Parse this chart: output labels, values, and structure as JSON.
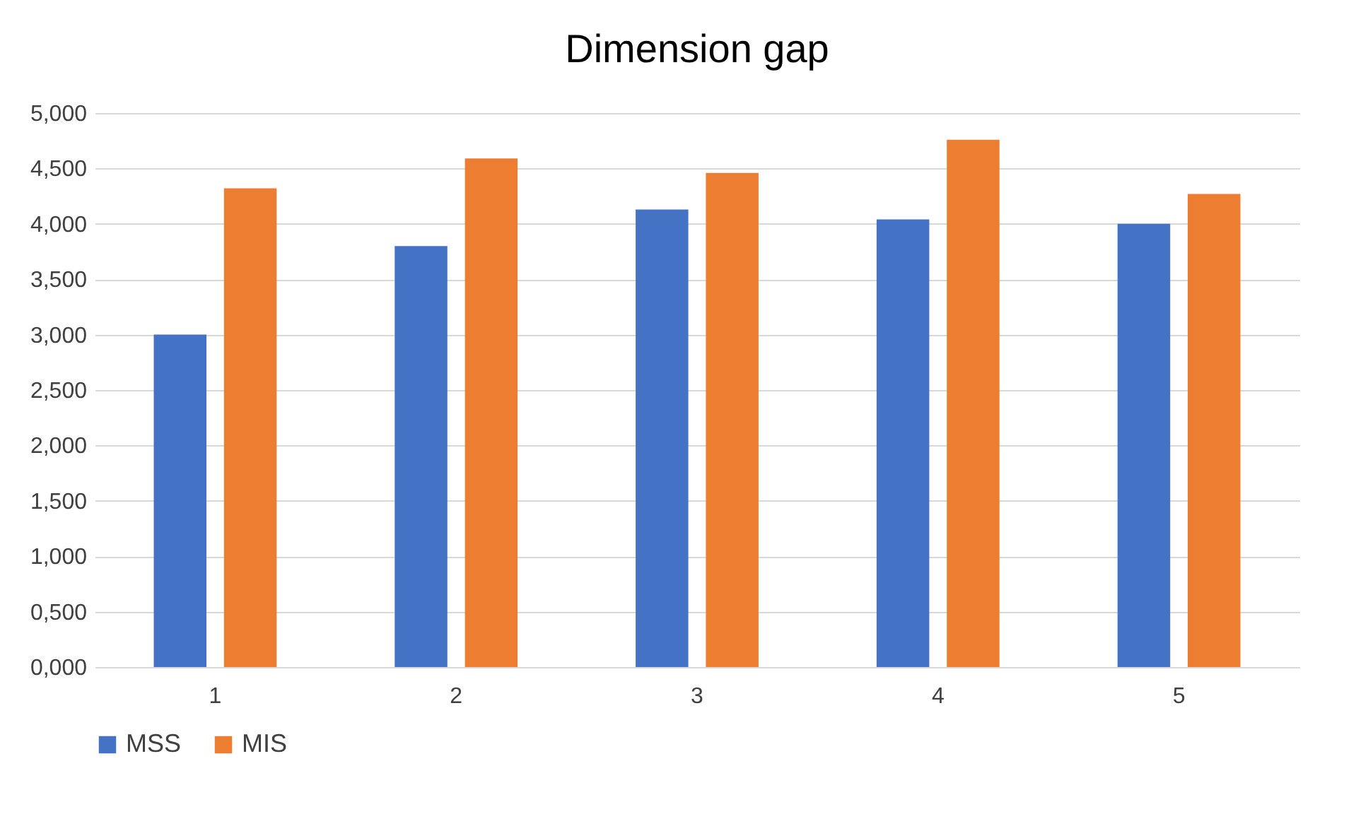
{
  "chart_data": {
    "type": "bar",
    "title": "Dimension gap",
    "categories": [
      "1",
      "2",
      "3",
      "4",
      "5"
    ],
    "series": [
      {
        "name": "MSS",
        "color": "#4472c4",
        "values": [
          3.0,
          3.8,
          4.13,
          4.04,
          4.0
        ]
      },
      {
        "name": "MIS",
        "color": "#ed7d31",
        "values": [
          4.32,
          4.59,
          4.46,
          4.76,
          4.27
        ]
      }
    ],
    "ylim": [
      0,
      5
    ],
    "yticks": [
      {
        "value": 0,
        "label": "0,000"
      },
      {
        "value": 0.5,
        "label": "0,500"
      },
      {
        "value": 1,
        "label": "1,000"
      },
      {
        "value": 1.5,
        "label": "1,500"
      },
      {
        "value": 2,
        "label": "2,000"
      },
      {
        "value": 2.5,
        "label": "2,500"
      },
      {
        "value": 3,
        "label": "3,000"
      },
      {
        "value": 3.5,
        "label": "3,500"
      },
      {
        "value": 4,
        "label": "4,000"
      },
      {
        "value": 4.5,
        "label": "4,500"
      },
      {
        "value": 5,
        "label": "5,000"
      }
    ],
    "grid": "y",
    "legend": "bottom"
  }
}
